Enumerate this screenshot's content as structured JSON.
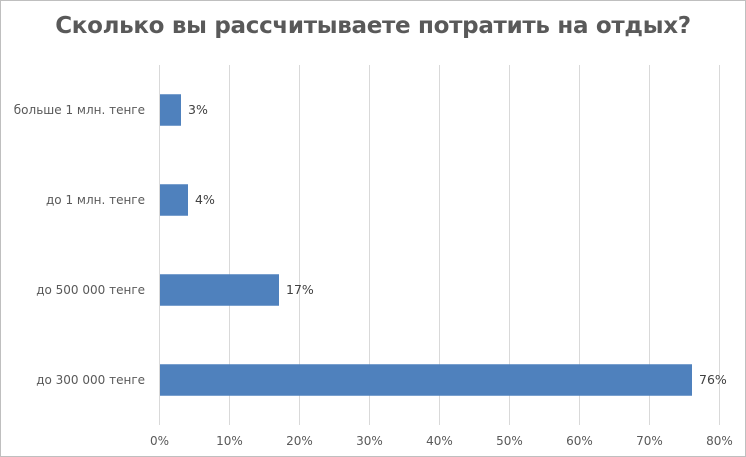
{
  "chart_data": {
    "type": "bar",
    "orientation": "horizontal",
    "title": "Сколько вы рассчитываете потратить на отдых?",
    "categories": [
      "больше 1 млн. тенге",
      "до 1 млн. тенге",
      "до 500 000 тенге",
      "до 300 000 тенге"
    ],
    "values": [
      3,
      4,
      17,
      76
    ],
    "data_labels": [
      "3%",
      "4%",
      "17%",
      "76%"
    ],
    "x_ticks": [
      "0%",
      "10%",
      "20%",
      "30%",
      "40%",
      "50%",
      "60%",
      "70%",
      "80%"
    ],
    "xlim": [
      0,
      80
    ],
    "grid": true,
    "legend": "none",
    "bar_color": "#4f81bd"
  }
}
